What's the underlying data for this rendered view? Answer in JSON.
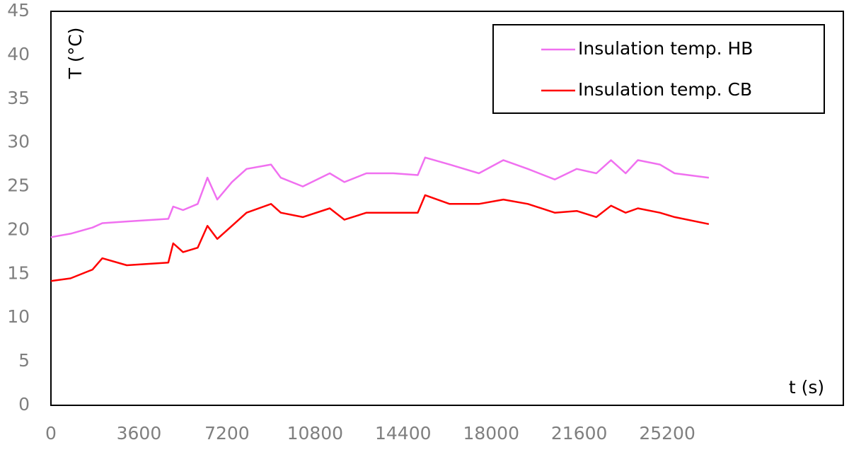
{
  "chart_data": {
    "type": "line",
    "x_label": "t (s)",
    "y_label": "T (°C)",
    "x": [
      0,
      800,
      1700,
      2100,
      3100,
      4800,
      5000,
      5400,
      6000,
      6400,
      6800,
      7400,
      8000,
      9000,
      9400,
      10300,
      11400,
      12000,
      12900,
      14000,
      15000,
      15300,
      16300,
      17500,
      18500,
      19500,
      20600,
      21500,
      22300,
      22900,
      23500,
      24000,
      24900,
      25500,
      26900
    ],
    "series": [
      {
        "name": "Insulation temp. HB",
        "color": "#f070f0",
        "values": [
          19.2,
          19.6,
          20.3,
          20.8,
          21.0,
          21.3,
          22.7,
          22.3,
          23.0,
          26.0,
          23.5,
          25.5,
          27.0,
          27.5,
          26.0,
          25.0,
          26.5,
          25.5,
          26.5,
          26.5,
          26.3,
          28.3,
          27.5,
          26.5,
          28.0,
          27.0,
          25.8,
          27.0,
          26.5,
          28.0,
          26.5,
          28.0,
          27.5,
          26.5,
          26.0
        ]
      },
      {
        "name": "Insulation temp. CB",
        "color": "#ff0000",
        "values": [
          14.2,
          14.5,
          15.5,
          16.8,
          16.0,
          16.3,
          18.5,
          17.5,
          18.0,
          20.5,
          19.0,
          20.5,
          22.0,
          23.0,
          22.0,
          21.5,
          22.5,
          21.2,
          22.0,
          22.0,
          22.0,
          24.0,
          23.0,
          23.0,
          23.5,
          23.0,
          22.0,
          22.2,
          21.5,
          22.8,
          22.0,
          22.5,
          22.0,
          21.5,
          20.7
        ]
      }
    ],
    "xlim": [
      0,
      32400
    ],
    "xticks": [
      0,
      3600,
      7200,
      10800,
      14400,
      18000,
      21600,
      25200
    ],
    "ylim": [
      0,
      45
    ],
    "yticks": [
      0,
      5,
      10,
      15,
      20,
      25,
      30,
      35,
      40,
      45
    ],
    "grid": false,
    "legend": "top-right"
  }
}
